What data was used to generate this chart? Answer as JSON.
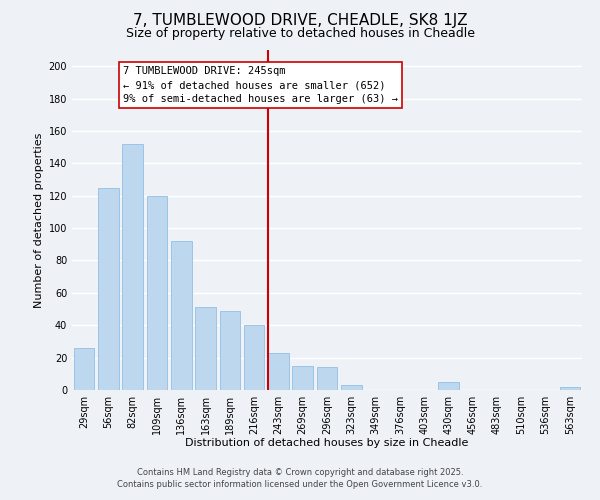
{
  "title": "7, TUMBLEWOOD DRIVE, CHEADLE, SK8 1JZ",
  "subtitle": "Size of property relative to detached houses in Cheadle",
  "xlabel": "Distribution of detached houses by size in Cheadle",
  "ylabel": "Number of detached properties",
  "bar_labels": [
    "29sqm",
    "56sqm",
    "82sqm",
    "109sqm",
    "136sqm",
    "163sqm",
    "189sqm",
    "216sqm",
    "243sqm",
    "269sqm",
    "296sqm",
    "323sqm",
    "349sqm",
    "376sqm",
    "403sqm",
    "430sqm",
    "456sqm",
    "483sqm",
    "510sqm",
    "536sqm",
    "563sqm"
  ],
  "bar_heights": [
    26,
    125,
    152,
    120,
    92,
    51,
    49,
    40,
    23,
    15,
    14,
    3,
    0,
    0,
    0,
    5,
    0,
    0,
    0,
    0,
    2
  ],
  "bar_color": "#bdd7ee",
  "bar_edge_color": "#9dc3e6",
  "vline_color": "#cc0000",
  "annotation_title": "7 TUMBLEWOOD DRIVE: 245sqm",
  "annotation_line1": "← 91% of detached houses are smaller (652)",
  "annotation_line2": "9% of semi-detached houses are larger (63) →",
  "ylim": [
    0,
    210
  ],
  "yticks": [
    0,
    20,
    40,
    60,
    80,
    100,
    120,
    140,
    160,
    180,
    200
  ],
  "footer1": "Contains HM Land Registry data © Crown copyright and database right 2025.",
  "footer2": "Contains public sector information licensed under the Open Government Licence v3.0.",
  "bg_color": "#eef2f7",
  "grid_color": "#ffffff",
  "title_fontsize": 11,
  "subtitle_fontsize": 9,
  "axis_label_fontsize": 8,
  "tick_fontsize": 7,
  "annotation_fontsize": 7.5,
  "footer_fontsize": 6
}
